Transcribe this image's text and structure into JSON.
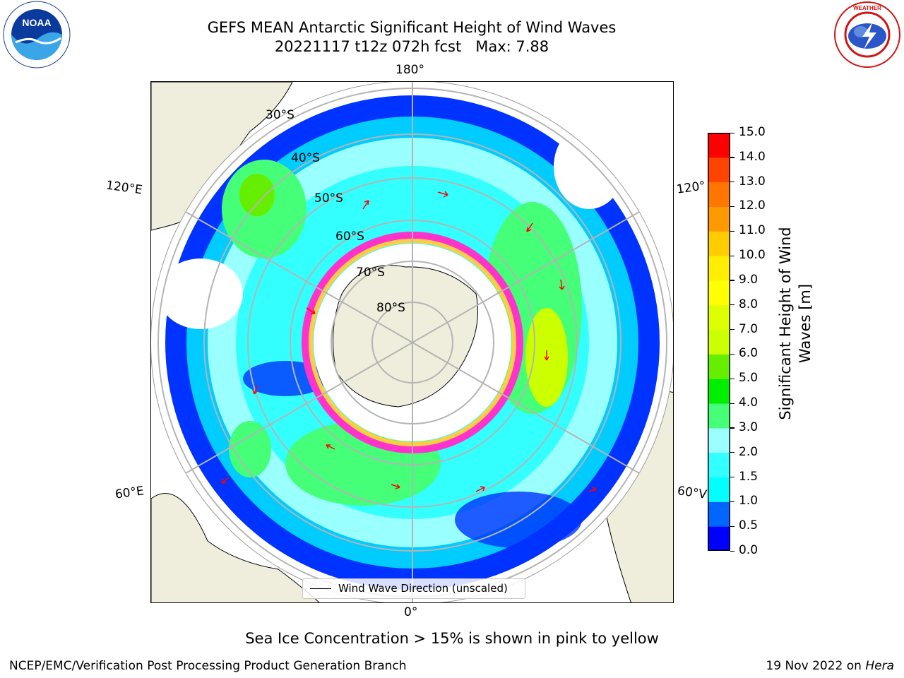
{
  "header": {
    "title_line1": "GEFS MEAN Antarctic Significant Height of Wind Waves",
    "title_line2": "20221117 t12z 072h fcst   Max: 7.88"
  },
  "logos": {
    "left": {
      "icon": "noaa-logo-icon",
      "text": "NOAA"
    },
    "right": {
      "icon": "nws-logo-icon",
      "text": "NATIONAL WEATHER SERVICE"
    }
  },
  "map": {
    "projection": "south-polar-stereographic",
    "lon_labels": {
      "top": "180°",
      "bottom": "0°",
      "upper_left": "120°E",
      "upper_right": "120°",
      "lower_left": "60°E",
      "lower_right": "60°V"
    },
    "lat_labels": [
      "30°S",
      "40°S",
      "50°S",
      "60°S",
      "70°S",
      "80°S"
    ],
    "land_color": "#efeddc",
    "ocean_nodata_color": "#ffffff",
    "sea_ice_colors": [
      "#ff00ff",
      "#ff66cc",
      "#ffcc00",
      "#ffee88"
    ],
    "arrow_color": "#ff0000",
    "legend_label": "Wind Wave Direction (unscaled)"
  },
  "colorbar": {
    "title_line1": "Significant Height of Wind",
    "title_line2": "Waves [m]",
    "ticks": [
      "0.0",
      "0.5",
      "1.0",
      "1.5",
      "2.0",
      "3.0",
      "4.0",
      "5.0",
      "6.0",
      "7.0",
      "8.0",
      "9.0",
      "10.0",
      "11.0",
      "12.0",
      "13.0",
      "14.0",
      "15.0"
    ],
    "colors": [
      "#0000ff",
      "#0066ff",
      "#00ffff",
      "#33ffff",
      "#99ffff",
      "#44ff77",
      "#00ee00",
      "#66ee00",
      "#ccff00",
      "#ddff00",
      "#ffff00",
      "#ffee00",
      "#ffcc00",
      "#ff9900",
      "#ff7700",
      "#ff4400",
      "#ff0000"
    ]
  },
  "footer": {
    "note": "Sea Ice Concentration > 15% is shown in pink to yellow",
    "left": "NCEP/EMC/Verification Post Processing Product Generation Branch",
    "right_prefix": "19 Nov 2022 on ",
    "right_em": "Hera"
  }
}
